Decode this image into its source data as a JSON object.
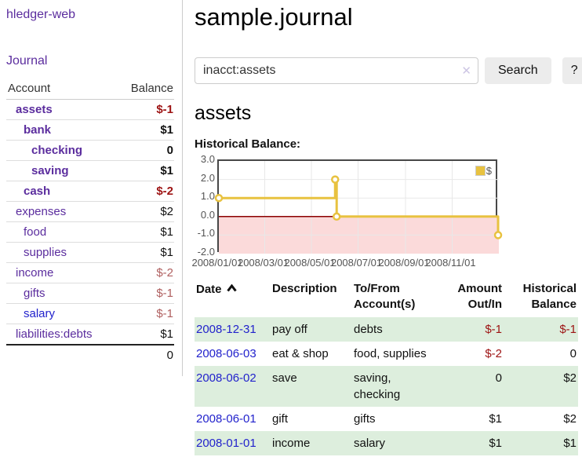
{
  "app": {
    "brand": "hledger-web",
    "nav_journal": "Journal"
  },
  "sidebar": {
    "col_account": "Account",
    "col_balance": "Balance",
    "accounts": [
      {
        "name": "assets",
        "balance": "$-1"
      },
      {
        "name": "bank",
        "balance": "$1"
      },
      {
        "name": "checking",
        "balance": "0"
      },
      {
        "name": "saving",
        "balance": "$1"
      },
      {
        "name": "cash",
        "balance": "$-2"
      },
      {
        "name": "expenses",
        "balance": "$2"
      },
      {
        "name": "food",
        "balance": "$1"
      },
      {
        "name": "supplies",
        "balance": "$1"
      },
      {
        "name": "income",
        "balance": "$-2"
      },
      {
        "name": "gifts",
        "balance": "$-1"
      },
      {
        "name": "salary",
        "balance": "$-1"
      },
      {
        "name": "liabilities:debts",
        "balance": "$1"
      }
    ],
    "total": "0"
  },
  "header": {
    "title": "sample.journal"
  },
  "search": {
    "value": "inacct:assets",
    "clear_glyph": "✕",
    "button_label": "Search",
    "help_label": "?"
  },
  "account_page": {
    "heading": "assets",
    "chart_label": "Historical Balance:"
  },
  "chart_data": {
    "type": "line",
    "title": "Historical Balance",
    "legend": [
      {
        "label": "$",
        "color": "#e8c240"
      }
    ],
    "legend_position": "top-right",
    "x_range": [
      "2008-01-01",
      "2009-01-01"
    ],
    "ylim": [
      -2.0,
      3.0
    ],
    "y_ticks": [
      "3.0",
      "2.0",
      "1.0",
      "0.0",
      "-1.0",
      "-2.0"
    ],
    "x_ticks": [
      {
        "date": "2008-01-01",
        "label": "2008/01/01"
      },
      {
        "date": "2008-03-01",
        "label": "2008/03/01"
      },
      {
        "date": "2008-05-01",
        "label": "2008/05/01"
      },
      {
        "date": "2008-07-01",
        "label": "2008/07/01"
      },
      {
        "date": "2008-09-01",
        "label": "2008/09/01"
      },
      {
        "date": "2008-11-01",
        "label": "2008/11/01"
      }
    ],
    "series": [
      {
        "name": "$",
        "color": "#e8c240",
        "line_type": "step-after",
        "points": [
          {
            "date": "2008-01-01",
            "value": 1
          },
          {
            "date": "2008-06-01",
            "value": 2
          },
          {
            "date": "2008-06-03",
            "value": 0
          },
          {
            "date": "2008-12-31",
            "value": -1
          }
        ]
      }
    ],
    "grid": true,
    "zero_line_color": "#8b0000",
    "negative_region_color": "#fbdada",
    "grid_color": "#e8e8e8",
    "plot_border_color": "#474747"
  },
  "register": {
    "col_date": "Date",
    "col_description": "Description",
    "col_accounts": "To/From Account(s)",
    "col_amount": "Amount Out/In",
    "col_balance": "Historical Balance",
    "rows": [
      {
        "date": "2008-12-31",
        "description": "pay off",
        "accounts": "debts",
        "amount": "$-1",
        "balance": "$-1"
      },
      {
        "date": "2008-06-03",
        "description": "eat & shop",
        "accounts": "food, supplies",
        "amount": "$-2",
        "balance": "0"
      },
      {
        "date": "2008-06-02",
        "description": "save",
        "accounts": "saving, checking",
        "amount": "0",
        "balance": "$2"
      },
      {
        "date": "2008-06-01",
        "description": "gift",
        "accounts": "gifts",
        "amount": "$1",
        "balance": "$2"
      },
      {
        "date": "2008-01-01",
        "description": "income",
        "accounts": "salary",
        "amount": "$1",
        "balance": "$1"
      }
    ]
  },
  "colors": {
    "link_purple": "#5b2d9e",
    "link_blue": "#2222cc",
    "negative_strong": "#9d1313",
    "negative_soft": "#b06060",
    "row_shade_green": "#ddeedd",
    "series_gold": "#e8c240"
  }
}
